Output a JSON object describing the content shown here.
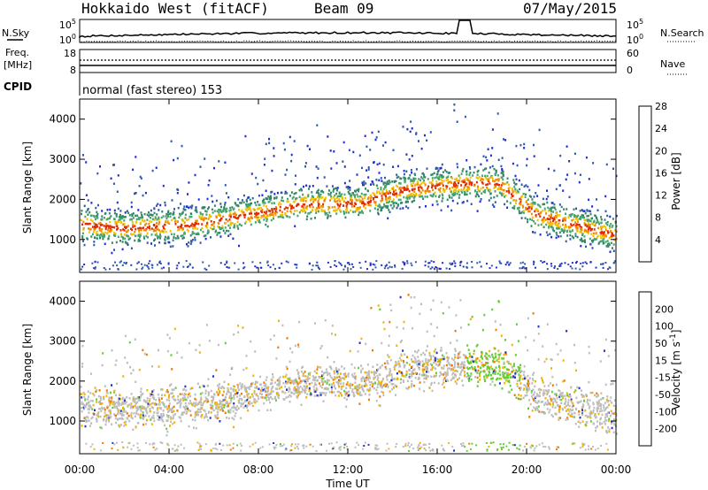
{
  "header": {
    "station": "Hokkaido West (fitACF)",
    "beam": "Beam 09",
    "date": "07/May/2015"
  },
  "top_panel": {
    "left_label": "N.Sky",
    "right_label": "N.Search",
    "left_ticks": [
      "10^5",
      "10^0"
    ],
    "right_ticks": [
      "10^5",
      "10^0"
    ]
  },
  "freq_panel": {
    "left_label_line1": "Freq.",
    "left_label_line2": "[MHz]",
    "right_label": "Nave",
    "left_ticks": [
      "18",
      "8"
    ],
    "right_ticks": [
      "60",
      "0"
    ]
  },
  "cpid": {
    "label": "CPID",
    "text": "normal (fast stereo) 153"
  },
  "chart_data": [
    {
      "type": "heatmap",
      "name": "power",
      "ylabel": "Slant Range [km]",
      "yticks": [
        "1000",
        "2000",
        "3000",
        "4000"
      ],
      "ylim": [
        180,
        4500
      ],
      "colorbar_label": "Power [dB]",
      "colorbar_ticks": [
        "4",
        "8",
        "12",
        "16",
        "20",
        "24",
        "28"
      ],
      "colors": [
        "#1f2bd6",
        "#2e5aa8",
        "#34856a",
        "#48a46e",
        "#f2c200",
        "#f08a00",
        "#e02a00"
      ]
    },
    {
      "type": "heatmap",
      "name": "velocity",
      "ylabel": "Slant Range [km]",
      "yticks": [
        "1000",
        "2000",
        "3000",
        "4000"
      ],
      "ylim": [
        180,
        4500
      ],
      "colorbar_label": "Velocity [m s^-1]",
      "colorbar_ticks": [
        "200",
        "100",
        "50",
        "15",
        "-15",
        "-50",
        "-100",
        "-200"
      ],
      "colors": [
        "#2233cc",
        "#2e6fb4",
        "#32966a",
        "#66cc33",
        "#bdbdbd",
        "#f0b400",
        "#f07800",
        "#e81e00"
      ]
    }
  ],
  "x_axis": {
    "xlabel": "Time UT",
    "ticks": [
      "00:00",
      "04:00",
      "08:00",
      "12:00",
      "16:00",
      "20:00",
      "00:00"
    ]
  }
}
